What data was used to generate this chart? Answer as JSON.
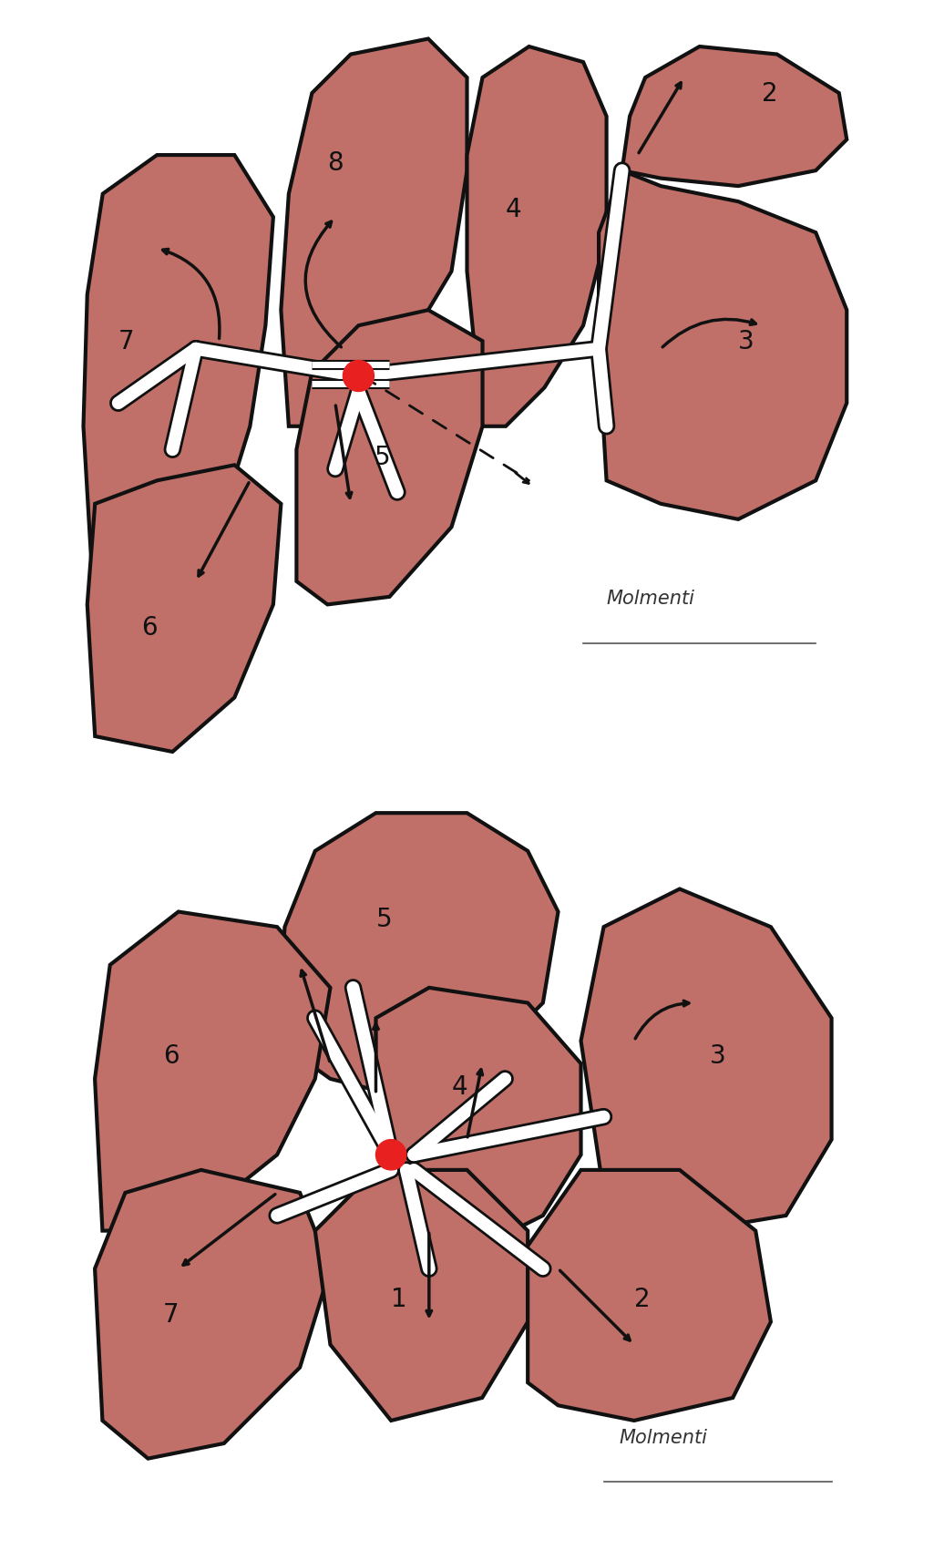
{
  "background_color": "#ffffff",
  "liver_fill": "#c07068",
  "liver_edge": "#111111",
  "white_channel": "#ffffff",
  "red_dot_color": "#e82020",
  "arrow_color": "#111111",
  "label_color": "#111111",
  "label_fontsize": 20,
  "sig_fontsize": 15,
  "fig_width": 10.25,
  "fig_height": 17.01,
  "dpi": 100,
  "lw_seg": 3.0,
  "lw_channel_outer": 14,
  "lw_channel_inner": 10
}
